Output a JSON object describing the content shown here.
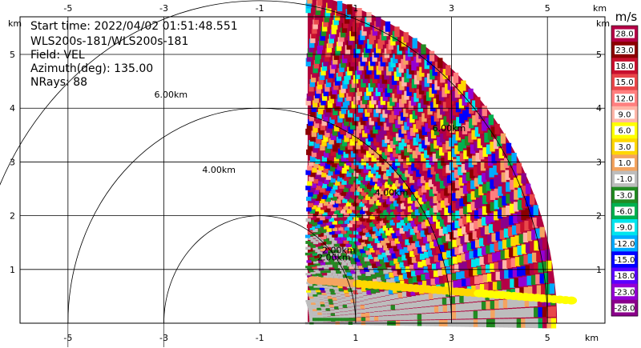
{
  "info": {
    "start_time": "Start time: 2022/04/02 01:51:48.551",
    "site": "WLS200s-181/WLS200s-181",
    "field": "Field: VEL",
    "azimuth": "Azimuth(deg): 135.00",
    "nrays": "NRays: 88"
  },
  "chart_data": {
    "type": "heatmap",
    "subtype": "radar-ppi",
    "x_unit": "km",
    "y_unit": "km",
    "xlim": [
      -6.0,
      6.2
    ],
    "ylim": [
      0.0,
      5.7
    ],
    "x_ticks": [
      -5,
      -3,
      -1,
      1,
      3,
      5
    ],
    "y_ticks": [
      1,
      2,
      3,
      4,
      5
    ],
    "range_rings": [
      {
        "radius": 2.0,
        "label": "2.00km"
      },
      {
        "radius": 4.0,
        "label": "4.00km"
      },
      {
        "radius": 6.0,
        "label": "6.00km"
      }
    ],
    "radar_origin": [
      -1.0,
      0.0
    ],
    "coverage_sector": {
      "x_start": 0.0,
      "max_range_km": 6.2
    },
    "colorbar": {
      "unit": "m/s",
      "labels": [
        "28.0",
        "23.0",
        "18.0",
        "15.0",
        "12.0",
        "9.0",
        "6.0",
        "3.0",
        "1.0",
        "-1.0",
        "-3.0",
        "-6.0",
        "-9.0",
        "-12.0",
        "-15.0",
        "-18.0",
        "-23.0",
        "-28.0"
      ],
      "colors": [
        "#b40046",
        "#8b0000",
        "#c8102e",
        "#e8474a",
        "#ff7f7f",
        "#ffb6a8",
        "#ffff00",
        "#ffd700",
        "#f4a460",
        "#bdbdbd",
        "#228b22",
        "#00b050",
        "#00e5ee",
        "#00aaff",
        "#0000ff",
        "#5a00ff",
        "#9400d3",
        "#8b008b"
      ]
    }
  }
}
